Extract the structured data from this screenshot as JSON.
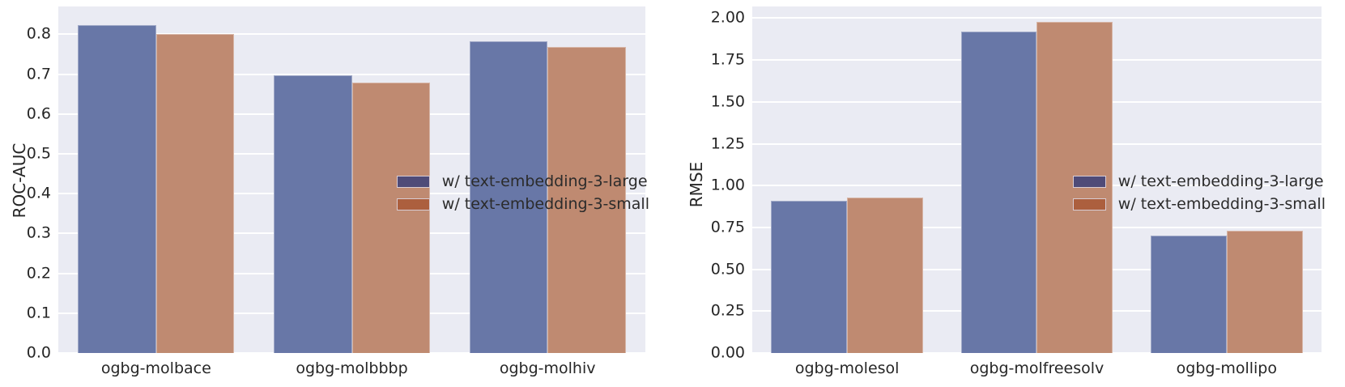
{
  "style": {
    "plot_background": "#eaebf3",
    "grid_color": "#ffffff",
    "text_color": "#262626",
    "bar_colors": [
      "#6877a7",
      "#bf8a71"
    ],
    "legend_swatch_colors": [
      "#4f4b78",
      "#ac5f3e"
    ]
  },
  "legend": {
    "position": "center right",
    "items": [
      {
        "label": "w/ text-embedding-3-large",
        "swatch_color": "#4f4b78",
        "bar_color": "#6877a7"
      },
      {
        "label": "w/ text-embedding-3-small",
        "swatch_color": "#ac5f3e",
        "bar_color": "#bf8a71"
      }
    ]
  },
  "chart_data": [
    {
      "type": "bar",
      "title": "",
      "xlabel": "",
      "ylabel": "ROC-AUC",
      "categories": [
        "ogbg-molbace",
        "ogbg-molbbbp",
        "ogbg-molhiv"
      ],
      "series": [
        {
          "name": "w/ text-embedding-3-large",
          "values": [
            0.823,
            0.698,
            0.783
          ]
        },
        {
          "name": "w/ text-embedding-3-small",
          "values": [
            0.801,
            0.678,
            0.769
          ]
        }
      ],
      "ytick_values": [
        0.0,
        0.1,
        0.2,
        0.3,
        0.4,
        0.5,
        0.6,
        0.7,
        0.8
      ],
      "ytick_labels": [
        "0.0",
        "0.1",
        "0.2",
        "0.3",
        "0.4",
        "0.5",
        "0.6",
        "0.7",
        "0.8"
      ],
      "ylim": [
        0,
        0.87
      ],
      "grid": true,
      "legend_position": "center right"
    },
    {
      "type": "bar",
      "title": "",
      "xlabel": "",
      "ylabel": "RMSE",
      "categories": [
        "ogbg-molesol",
        "ogbg-molfreesolv",
        "ogbg-mollipo"
      ],
      "series": [
        {
          "name": "w/ text-embedding-3-large",
          "values": [
            0.91,
            1.92,
            0.7
          ]
        },
        {
          "name": "w/ text-embedding-3-small",
          "values": [
            0.93,
            1.98,
            0.73
          ]
        }
      ],
      "ytick_values": [
        0.0,
        0.25,
        0.5,
        0.75,
        1.0,
        1.25,
        1.5,
        1.75,
        2.0
      ],
      "ytick_labels": [
        "0.00",
        "0.25",
        "0.50",
        "0.75",
        "1.00",
        "1.25",
        "1.50",
        "1.75",
        "2.00"
      ],
      "ylim": [
        0,
        2.07
      ],
      "grid": true,
      "legend_position": "center right"
    }
  ]
}
